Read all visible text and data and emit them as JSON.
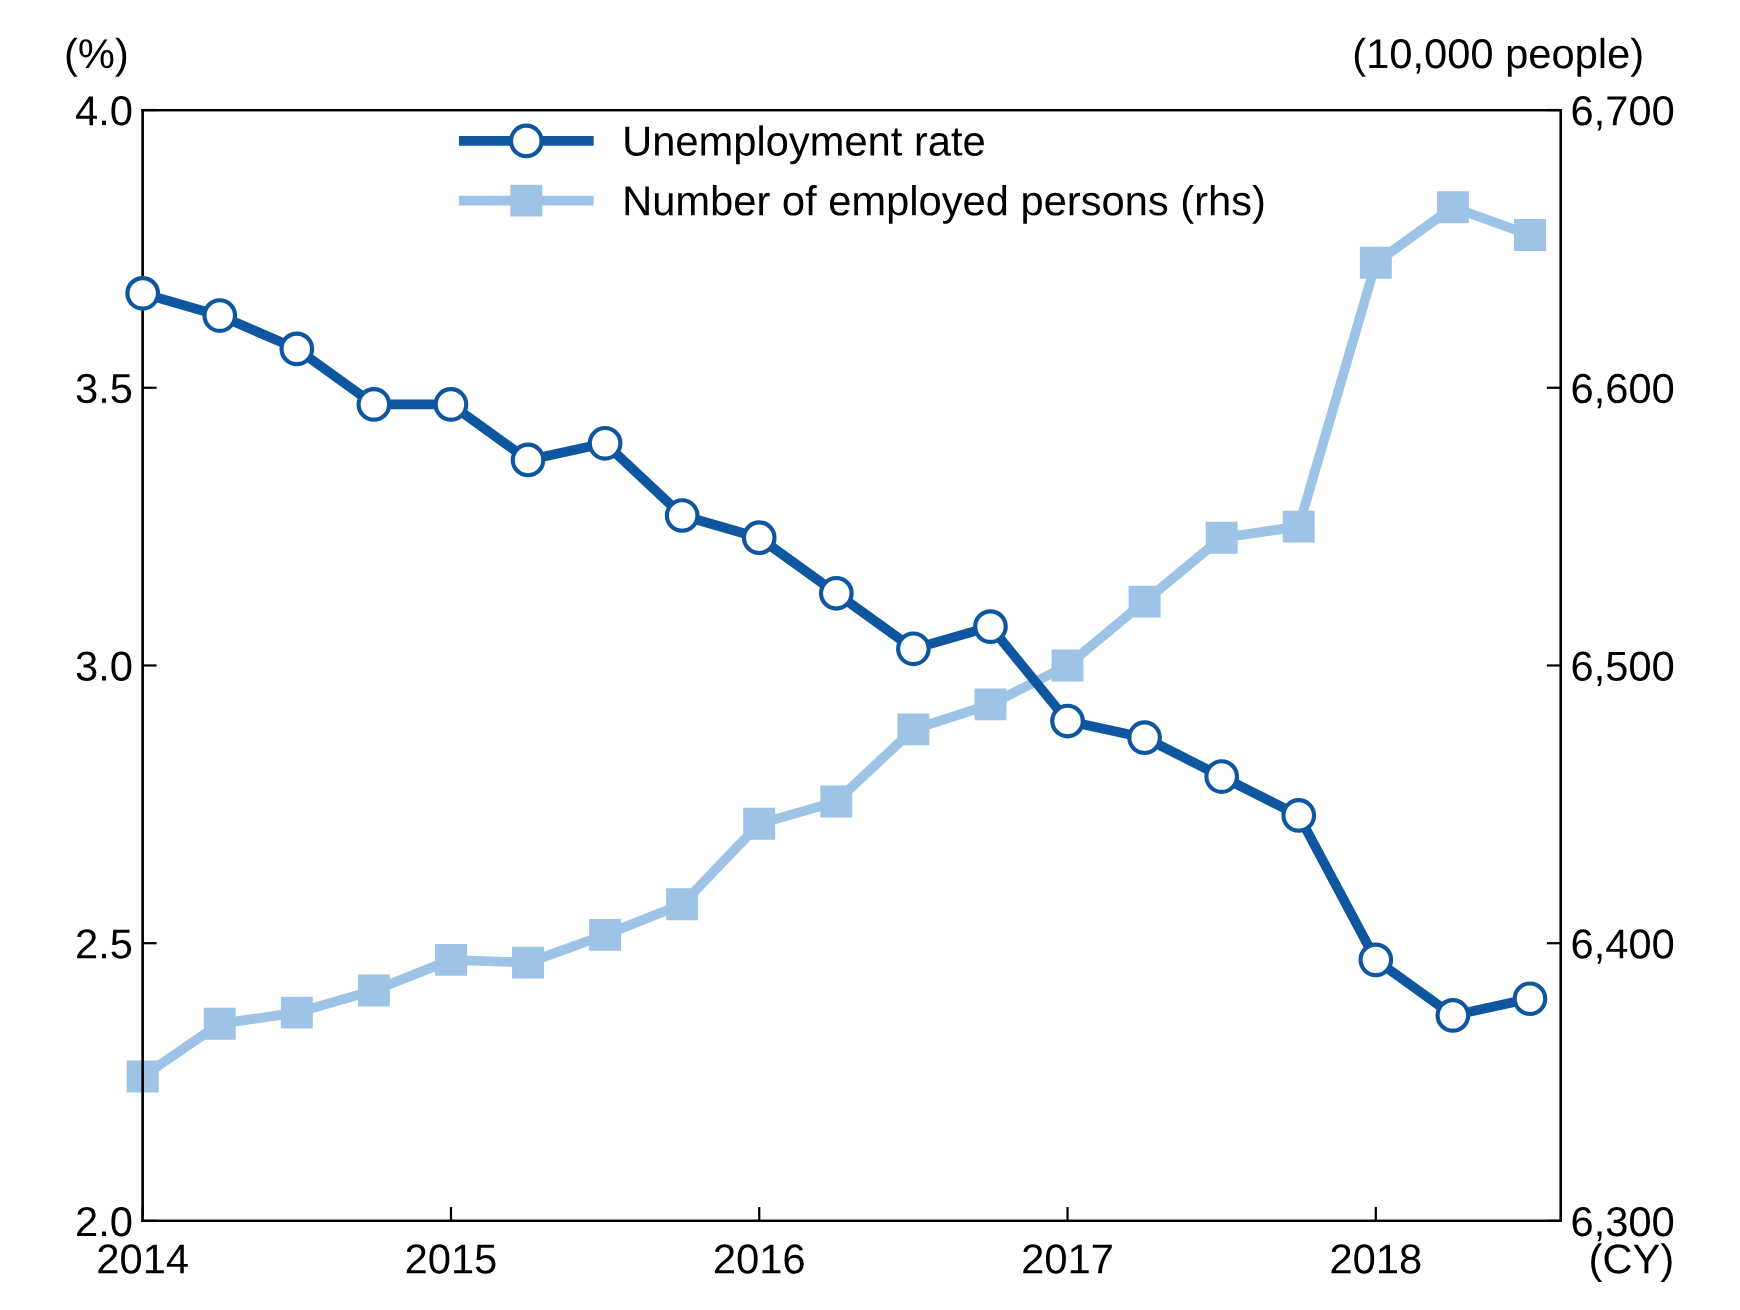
{
  "chart_data": {
    "type": "line",
    "xlabel": "(CY)",
    "ylabel": "(%)",
    "y2label": "(10,000 people)",
    "x": [
      2014,
      2014.25,
      2014.5,
      2014.75,
      2015,
      2015.25,
      2015.5,
      2015.75,
      2016,
      2016.25,
      2016.5,
      2016.75,
      2017,
      2017.25,
      2017.5,
      2017.75,
      2018,
      2018.25,
      2018.5
    ],
    "xlim": [
      2014,
      2018.6
    ],
    "xticks": [
      2014,
      2015,
      2016,
      2017,
      2018
    ],
    "ylim": [
      2.0,
      4.0
    ],
    "yticks": [
      {
        "value": 2.0,
        "label": "2.0"
      },
      {
        "value": 2.5,
        "label": "2.5"
      },
      {
        "value": 3.0,
        "label": "3.0"
      },
      {
        "value": 3.5,
        "label": "3.5"
      },
      {
        "value": 4.0,
        "label": "4.0"
      }
    ],
    "y2lim": [
      6300,
      6700
    ],
    "y2ticks": [
      {
        "value": 6300,
        "label": "6,300"
      },
      {
        "value": 6400,
        "label": "6,400"
      },
      {
        "value": 6500,
        "label": "6,500"
      },
      {
        "value": 6600,
        "label": "6,600"
      },
      {
        "value": 6700,
        "label": "6,700"
      }
    ],
    "series": [
      {
        "name": "Unemployment rate",
        "color": "#0f56a0",
        "marker": "circle",
        "values": [
          3.67,
          3.63,
          3.57,
          3.47,
          3.47,
          3.37,
          3.4,
          3.27,
          3.23,
          3.13,
          3.03,
          3.07,
          2.9,
          2.87,
          2.8,
          2.73,
          2.47,
          2.37,
          2.4
        ]
      },
      {
        "name": "Number of employed persons (rhs)",
        "color": "#9dc3e6",
        "marker": "square",
        "axis": "y2",
        "values": [
          6352,
          6371,
          6375,
          6383,
          6394,
          6393,
          6403,
          6414,
          6443,
          6451,
          6477,
          6486,
          6500,
          6523,
          6546,
          6550,
          6645,
          6665,
          6655
        ]
      }
    ],
    "grid": false,
    "legend": "top left",
    "line_style": "solid"
  }
}
